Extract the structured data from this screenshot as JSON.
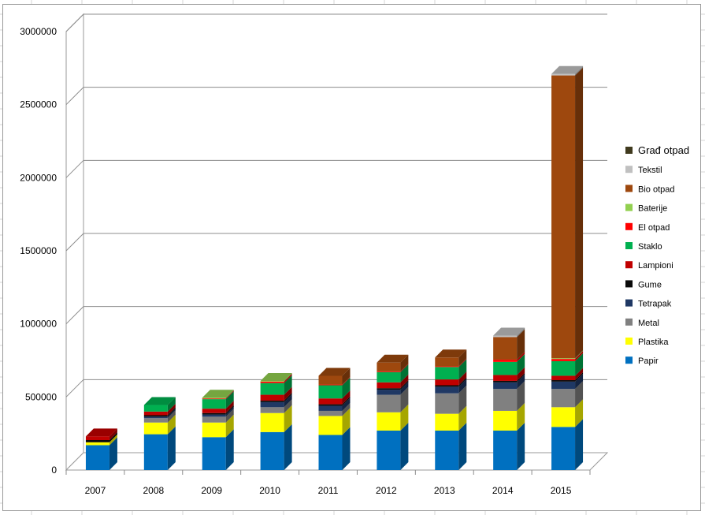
{
  "chart_data": {
    "type": "bar",
    "stacked": true,
    "three_d": true,
    "title": "",
    "xlabel": "",
    "ylabel": "",
    "ylim": [
      0,
      3000000
    ],
    "yticks": [
      "0",
      "500000",
      "1000000",
      "1500000",
      "2000000",
      "2500000",
      "3000000"
    ],
    "ytick_values": [
      0,
      500000,
      1000000,
      1500000,
      2000000,
      2500000,
      3000000
    ],
    "grid": true,
    "legend_position": "right",
    "categories": [
      "2007",
      "2008",
      "2009",
      "2010",
      "2011",
      "2012",
      "2013",
      "2014",
      "2015"
    ],
    "series": [
      {
        "name": "Papir",
        "color": "#0070C0",
        "values": [
          170000,
          245000,
          225000,
          260000,
          240000,
          270000,
          270000,
          270000,
          295000
        ]
      },
      {
        "name": "Plastika",
        "color": "#FFFF00",
        "values": [
          20000,
          80000,
          100000,
          130000,
          130000,
          125000,
          115000,
          135000,
          135000
        ]
      },
      {
        "name": "Metal",
        "color": "#808080",
        "values": [
          0,
          30000,
          40000,
          40000,
          35000,
          120000,
          140000,
          150000,
          125000
        ]
      },
      {
        "name": "Tetrapak",
        "color": "#1F3864",
        "values": [
          0,
          10000,
          15000,
          35000,
          35000,
          35000,
          45000,
          45000,
          50000
        ]
      },
      {
        "name": "Gume",
        "color": "#0A0A0A",
        "values": [
          15000,
          10000,
          10000,
          10000,
          10000,
          10000,
          10000,
          10000,
          10000
        ]
      },
      {
        "name": "Lampioni",
        "color": "#C00000",
        "values": [
          25000,
          25000,
          30000,
          40000,
          40000,
          40000,
          40000,
          40000,
          30000
        ]
      },
      {
        "name": "Staklo",
        "color": "#00B050",
        "values": [
          0,
          45000,
          65000,
          80000,
          90000,
          70000,
          85000,
          90000,
          100000
        ]
      },
      {
        "name": "El otpad",
        "color": "#FF0000",
        "values": [
          0,
          0,
          5000,
          10000,
          5000,
          5000,
          5000,
          15000,
          15000
        ]
      },
      {
        "name": "Baterije",
        "color": "#92D050",
        "values": [
          0,
          0,
          5000,
          5000,
          0,
          0,
          0,
          0,
          5000
        ]
      },
      {
        "name": "Bio otpad",
        "color": "#9E480E",
        "values": [
          0,
          0,
          0,
          0,
          60000,
          60000,
          60000,
          155000,
          1935000
        ]
      },
      {
        "name": "Tekstil",
        "color": "#C0C0C0",
        "values": [
          0,
          0,
          0,
          0,
          0,
          0,
          0,
          10000,
          10000
        ]
      },
      {
        "name": "Građ otpad",
        "color": "#403A1E",
        "values": [
          0,
          0,
          0,
          0,
          0,
          0,
          0,
          0,
          0
        ]
      }
    ]
  }
}
